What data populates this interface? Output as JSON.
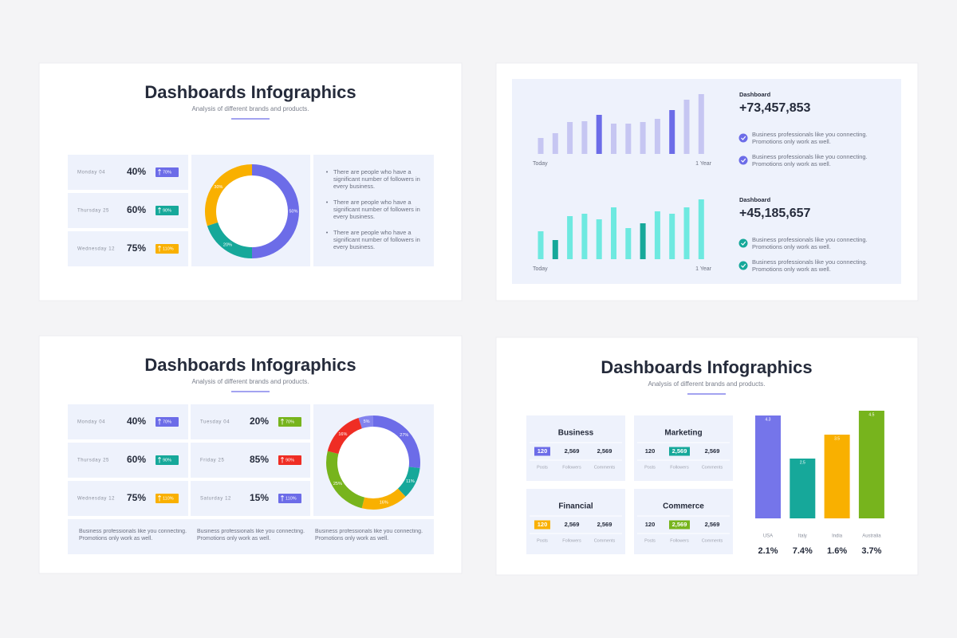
{
  "slides": [
    {
      "title": "Dashboards Infographics",
      "subtitle": "Analysis of different brands and products.",
      "stats": [
        {
          "day": "Monday 04",
          "percent": "40%",
          "badge": "70%",
          "color": "#6c6ce8"
        },
        {
          "day": "Thursday 25",
          "percent": "60%",
          "badge": "90%",
          "color": "#16a89a"
        },
        {
          "day": "Wednesday 12",
          "percent": "75%",
          "badge": "110%",
          "color": "#f9b000"
        }
      ],
      "donut": {
        "values": [
          50,
          20,
          30
        ],
        "value_labels": [
          "50%",
          "20%",
          "30%"
        ],
        "colors": [
          "#6c6ce8",
          "#16a89a",
          "#f9b000"
        ]
      },
      "bullets": [
        "There are people who have a significant number of followers in every business.",
        "There are people who have a significant number of followers in every business.",
        "There are people who have a significant number of followers in every business."
      ]
    },
    {
      "panels": [
        {
          "bars": {
            "values": [
              20,
              26,
              40,
              41,
              49,
              38,
              38,
              40,
              44,
              55,
              68,
              75
            ],
            "colors": [
              "#c6c6f2",
              "#c6c6f2",
              "#c6c6f2",
              "#c6c6f2",
              "#6c6ce8",
              "#c6c6f2",
              "#c6c6f2",
              "#c6c6f2",
              "#c6c6f2",
              "#6c6ce8",
              "#c6c6f2",
              "#c6c6f2"
            ]
          },
          "start_label": "Today",
          "end_label": "1 Year",
          "heading": "Dashboard",
          "total": "+73,457,853",
          "check_color": "#6c6ce8",
          "items": [
            "Business professionals like you connecting. Promotions only work as well.",
            "Business professionals like you connecting. Promotions only work as well."
          ]
        },
        {
          "bars": {
            "values": [
              35,
              24,
              54,
              57,
              50,
              65,
              39,
              45,
              60,
              57,
              65,
              75
            ],
            "colors": [
              "#6ee9e0",
              "#16a89a",
              "#6ee9e0",
              "#6ee9e0",
              "#6ee9e0",
              "#6ee9e0",
              "#6ee9e0",
              "#16a89a",
              "#6ee9e0",
              "#6ee9e0",
              "#6ee9e0",
              "#6ee9e0"
            ]
          },
          "start_label": "Today",
          "end_label": "1 Year",
          "heading": "Dashboard",
          "total": "+45,185,657",
          "check_color": "#16a89a",
          "items": [
            "Business professionals like you connecting. Promotions only work as well.",
            "Business professionals like you connecting. Promotions only work as well."
          ]
        }
      ]
    },
    {
      "title": "Dashboards Infographics",
      "subtitle": "Analysis of different brands and products.",
      "stats": [
        {
          "day": "Monday 04",
          "percent": "40%",
          "badge": "70%",
          "color": "#6c6ce8"
        },
        {
          "day": "Thursday 25",
          "percent": "60%",
          "badge": "90%",
          "color": "#16a89a"
        },
        {
          "day": "Wednesday 12",
          "percent": "75%",
          "badge": "110%",
          "color": "#f9b000"
        },
        {
          "day": "Tuesday 04",
          "percent": "20%",
          "badge": "70%",
          "color": "#77b41d"
        },
        {
          "day": "Friday 25",
          "percent": "85%",
          "badge": "90%",
          "color": "#ef2d24"
        },
        {
          "day": "Saturday 12",
          "percent": "15%",
          "badge": "110%",
          "color": "#6c6ce8"
        }
      ],
      "donut": {
        "values": [
          5,
          27,
          11,
          16,
          25,
          16
        ],
        "value_labels": [
          "5%",
          "27%",
          "11%",
          "16%",
          "25%",
          "16%"
        ],
        "colors": [
          "#8383ee",
          "#6c6ce8",
          "#16a89a",
          "#f9b000",
          "#77b41d",
          "#ef2d24"
        ]
      },
      "notes": [
        "Business professionals like you connecting. Promotions only work as well.",
        "Business professionals like you connecting. Promotions only work as well.",
        "Business professionals like you connecting. Promotions only work as well."
      ]
    },
    {
      "title": "Dashboards Infographics",
      "subtitle": "Analysis of different brands and products.",
      "cards": [
        {
          "name": "Business",
          "values": [
            "120",
            "2,569",
            "2,569"
          ],
          "labels": [
            "Posts",
            "Followers",
            "Comments"
          ],
          "highlight": 0,
          "color": "#6c6ce8"
        },
        {
          "name": "Marketing",
          "values": [
            "120",
            "2,569",
            "2,569"
          ],
          "labels": [
            "Posts",
            "Followers",
            "Comments"
          ],
          "highlight": 1,
          "color": "#16a89a"
        },
        {
          "name": "Financial",
          "values": [
            "120",
            "2,569",
            "2,569"
          ],
          "labels": [
            "Posts",
            "Followers",
            "Comments"
          ],
          "highlight": 0,
          "color": "#f9b000"
        },
        {
          "name": "Commerce",
          "values": [
            "120",
            "2,569",
            "2,569"
          ],
          "labels": [
            "Posts",
            "Followers",
            "Comments"
          ],
          "highlight": 1,
          "color": "#77b41d"
        }
      ],
      "chart": {
        "categories": [
          "USA",
          "Italy",
          "India",
          "Australia"
        ],
        "values": [
          4.3,
          2.5,
          3.5,
          4.5
        ],
        "colors": [
          "#7575ea",
          "#16a89a",
          "#f9b000",
          "#77b41d"
        ],
        "changes": [
          "2.1%",
          "7.4%",
          "1.6%",
          "3.7%"
        ]
      }
    }
  ]
}
